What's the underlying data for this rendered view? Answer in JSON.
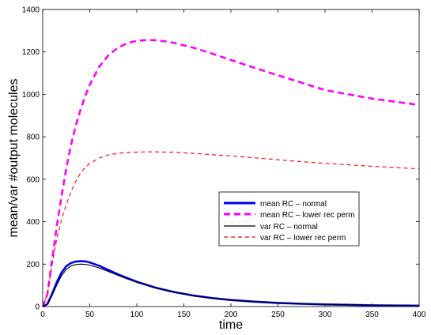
{
  "chart_data": {
    "type": "line",
    "xlabel": "time",
    "ylabel": "mean/var #output molecules",
    "xlim": [
      0,
      400
    ],
    "ylim": [
      0,
      1400
    ],
    "x_ticks": [
      "0",
      "50",
      "100",
      "150",
      "200",
      "250",
      "300",
      "350",
      "400"
    ],
    "y_ticks": [
      "0",
      "200",
      "400",
      "600",
      "800",
      "1000",
      "1200",
      "1400"
    ],
    "legend_position": "center-right",
    "series": [
      {
        "name": "mean RC – normal",
        "color": "#0000ee",
        "style": "solid-thick",
        "x": [
          0,
          5,
          10,
          15,
          20,
          25,
          30,
          35,
          40,
          45,
          50,
          60,
          70,
          80,
          90,
          100,
          120,
          140,
          160,
          180,
          200,
          225,
          250,
          275,
          300,
          325,
          350,
          375,
          400
        ],
        "y": [
          0,
          12,
          60,
          115,
          160,
          190,
          205,
          212,
          214,
          213,
          208,
          192,
          172,
          152,
          134,
          117,
          89,
          68,
          52,
          40,
          31,
          23,
          17,
          13,
          10,
          8,
          6,
          5,
          4
        ]
      },
      {
        "name": "mean RC – lower rec perm",
        "color": "#ff00ff",
        "style": "dashed-thick",
        "x": [
          0,
          5,
          10,
          15,
          20,
          25,
          30,
          35,
          40,
          45,
          50,
          60,
          70,
          80,
          90,
          100,
          110,
          120,
          130,
          140,
          160,
          180,
          200,
          225,
          250,
          275,
          300,
          325,
          350,
          375,
          400
        ],
        "y": [
          0,
          60,
          220,
          380,
          520,
          650,
          760,
          850,
          925,
          990,
          1045,
          1130,
          1185,
          1220,
          1242,
          1252,
          1256,
          1255,
          1250,
          1242,
          1220,
          1192,
          1162,
          1125,
          1090,
          1055,
          1020,
          1000,
          980,
          965,
          950
        ]
      },
      {
        "name": "var RC – normal",
        "color": "#000000",
        "style": "solid",
        "x": [
          0,
          5,
          10,
          15,
          20,
          25,
          30,
          35,
          40,
          45,
          50,
          60,
          70,
          80,
          90,
          100,
          120,
          140,
          160,
          180,
          200,
          225,
          250,
          275,
          300,
          325,
          350,
          375,
          400
        ],
        "y": [
          0,
          10,
          52,
          102,
          145,
          175,
          191,
          198,
          200,
          199,
          195,
          182,
          165,
          147,
          130,
          114,
          87,
          67,
          51,
          40,
          31,
          23,
          17,
          13,
          10,
          8,
          6,
          5,
          4
        ]
      },
      {
        "name": "var RC – lower rec perm",
        "color": "#ff0000",
        "style": "dashed",
        "x": [
          0,
          5,
          10,
          15,
          20,
          25,
          30,
          35,
          40,
          45,
          50,
          60,
          70,
          80,
          90,
          100,
          110,
          120,
          130,
          140,
          160,
          180,
          200,
          225,
          250,
          275,
          300,
          325,
          350,
          375,
          400
        ],
        "y": [
          0,
          60,
          200,
          320,
          410,
          480,
          540,
          590,
          628,
          655,
          675,
          700,
          715,
          722,
          726,
          728,
          729,
          729,
          728,
          727,
          722,
          716,
          710,
          701,
          692,
          683,
          675,
          668,
          661,
          655,
          649
        ]
      }
    ]
  }
}
